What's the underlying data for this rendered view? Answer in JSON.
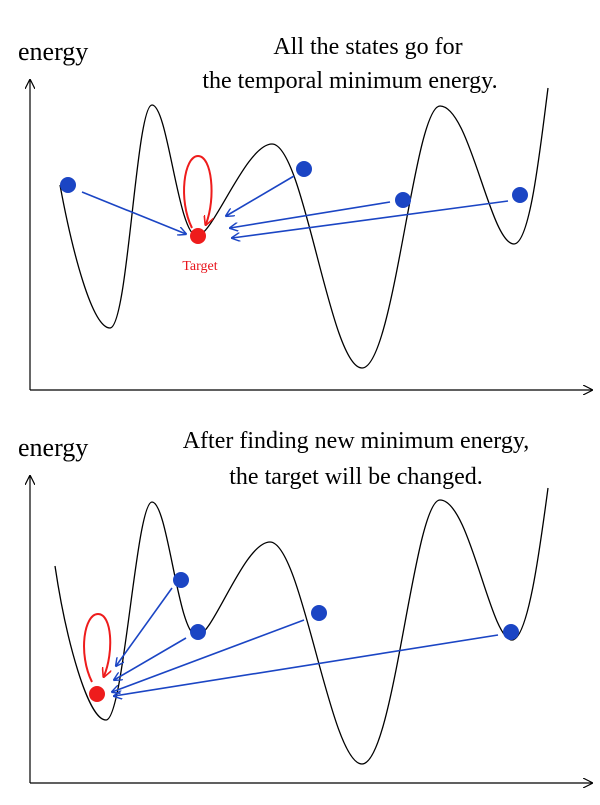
{
  "colors": {
    "curve": "#000000",
    "state": "#1b45c4",
    "arrow": "#1b45c4",
    "target": "#ee1c1c"
  },
  "panels": [
    {
      "axis_label": "energy",
      "caption_lines": [
        "All the states go for",
        "the temporal minimum energy."
      ],
      "target_label": "Target"
    },
    {
      "axis_label": "energy",
      "caption_lines": [
        "After finding new minimum energy,",
        "the target will be changed."
      ],
      "target_label": ""
    }
  ]
}
